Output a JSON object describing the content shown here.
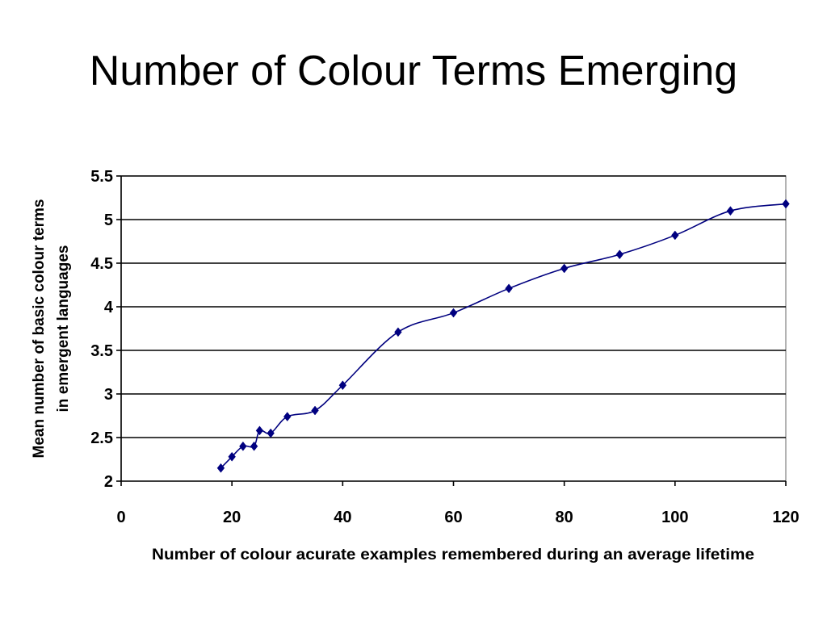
{
  "slide": {
    "title": "Number of Colour Terms Emerging"
  },
  "chart_data": {
    "type": "line",
    "title": "",
    "xlabel": "Number of colour acurate examples remembered during an average lifetime",
    "ylabel_lines": [
      "Mean number of basic colour terms",
      "in emergent languages"
    ],
    "xlim": [
      0,
      120
    ],
    "ylim": [
      2,
      5.5
    ],
    "x_ticks": [
      0,
      20,
      40,
      60,
      80,
      100,
      120
    ],
    "x_tick_labels": [
      "0",
      "20",
      "40",
      "60",
      "80",
      "100",
      "120"
    ],
    "y_ticks": [
      2,
      2.5,
      3,
      3.5,
      4,
      4.5,
      5,
      5.5
    ],
    "y_tick_labels": [
      "2",
      "2.5",
      "3",
      "3.5",
      "4",
      "4.5",
      "5",
      "5.5"
    ],
    "grid": "horizontal",
    "legend": "none",
    "marker": "diamond",
    "line_color": "#00007f",
    "marker_color": "#000080",
    "series": [
      {
        "x": [
          18,
          20,
          22,
          24,
          25,
          27,
          30,
          35,
          40,
          50,
          60,
          70,
          80,
          90,
          100,
          110,
          120
        ],
        "y": [
          2.15,
          2.28,
          2.4,
          2.4,
          2.58,
          2.55,
          2.74,
          2.81,
          3.1,
          3.71,
          3.93,
          4.21,
          4.44,
          4.6,
          4.82,
          5.1,
          5.18
        ]
      }
    ]
  }
}
